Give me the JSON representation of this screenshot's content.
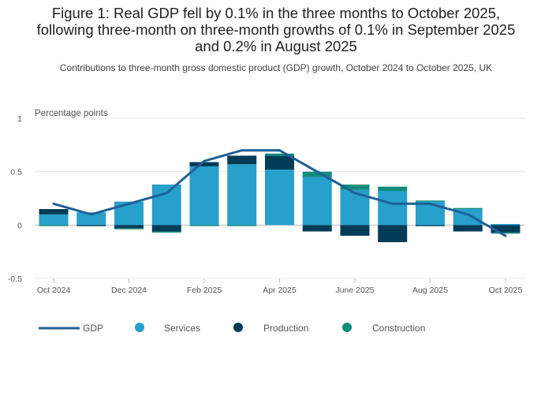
{
  "title_lines": [
    "Figure 1: Real GDP fell by 0.1% in the three months to October 2025,",
    "following three-month on three-month growths of 0.1% in September 2025",
    "and 0.2% in August 2025"
  ],
  "subtitle": "Contributions to three-month gross domestic product (GDP) growth, October 2024 to October 2025, UK",
  "colors": {
    "services": "#27a0cc",
    "production": "#003c57",
    "construction": "#118c7b",
    "gdp": "#206095",
    "grid": "#e8e8e8",
    "zero": "#bdbdbd"
  },
  "chart_data": {
    "type": "bar",
    "stacked": true,
    "ylabel": "Percentage points",
    "ylim": [
      -0.5,
      1
    ],
    "yticks": [
      -0.5,
      0,
      0.5,
      1
    ],
    "ytick_labels": [
      "-0.5",
      "0",
      "0.5",
      "1"
    ],
    "categories": [
      "Oct 2024",
      "Nov 2024",
      "Dec 2024",
      "Jan 2025",
      "Feb 2025",
      "Mar 2025",
      "Apr 2025",
      "May 2025",
      "Jun 2025",
      "Jul 2025",
      "Aug 2025",
      "Sep 2025",
      "Oct 2025"
    ],
    "tick_labels": [
      "Oct 2024",
      "Dec 2024",
      "Feb 2025",
      "Apr 2025",
      "June 2025",
      "Aug 2025",
      "Oct 2025"
    ],
    "tick_indices": [
      0,
      2,
      4,
      6,
      8,
      10,
      12
    ],
    "series": [
      {
        "name": "Services",
        "color_key": "services",
        "values": [
          0.1,
          0.12,
          0.22,
          0.38,
          0.55,
          0.57,
          0.52,
          0.45,
          0.33,
          0.32,
          0.22,
          0.15,
          0.01
        ]
      },
      {
        "name": "Production",
        "color_key": "production",
        "values": [
          0.05,
          -0.01,
          -0.03,
          -0.06,
          0.04,
          0.08,
          0.13,
          -0.06,
          -0.1,
          -0.16,
          -0.01,
          -0.06,
          -0.07
        ]
      },
      {
        "name": "Construction",
        "color_key": "construction",
        "values": [
          -0.01,
          0.0,
          -0.01,
          -0.01,
          -0.01,
          -0.01,
          0.02,
          0.05,
          0.05,
          0.04,
          0.01,
          0.01,
          -0.01
        ]
      }
    ],
    "line": {
      "name": "GDP",
      "values": [
        0.2,
        0.1,
        0.2,
        0.3,
        0.6,
        0.7,
        0.7,
        0.5,
        0.3,
        0.2,
        0.2,
        0.1,
        -0.1
      ]
    },
    "legend": [
      "GDP",
      "Services",
      "Production",
      "Construction"
    ],
    "legend_position": "bottom-left",
    "grid": true
  }
}
